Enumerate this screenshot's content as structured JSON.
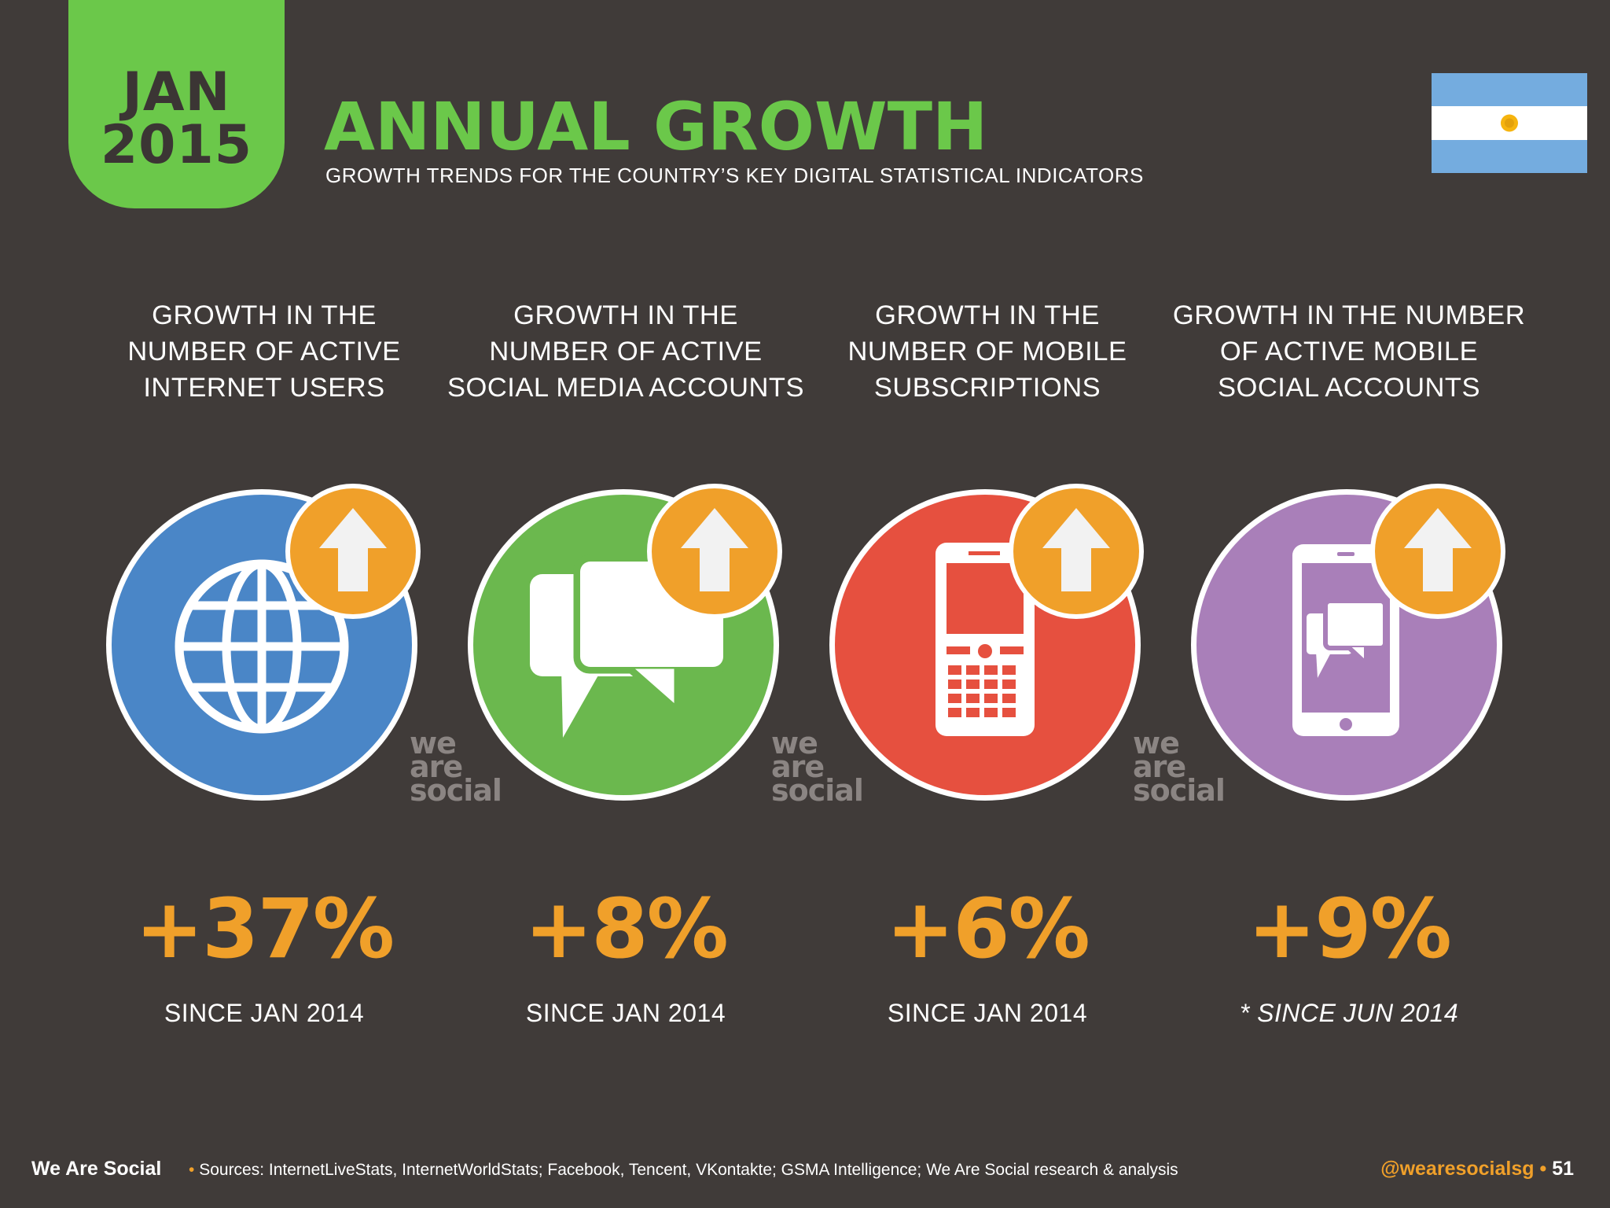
{
  "header": {
    "date_month": "JAN",
    "date_year": "2015",
    "title": "ANNUAL GROWTH",
    "subtitle": "GROWTH TRENDS FOR THE COUNTRY’S KEY DIGITAL STATISTICAL INDICATORS"
  },
  "colors": {
    "background": "#403b39",
    "accent_green": "#6bc84a",
    "accent_orange": "#f0a02a",
    "internet_blue": "#4a86c7",
    "social_green": "#6bb84e",
    "mobile_red": "#e6503f",
    "mobile_social_purple": "#a97fb9"
  },
  "indicators": [
    {
      "heading_lines": [
        "GROWTH IN THE",
        "NUMBER OF ACTIVE",
        "INTERNET USERS"
      ],
      "icon": "globe-icon",
      "value": "+37%",
      "since": "SINCE JAN 2014"
    },
    {
      "heading_lines": [
        "GROWTH IN THE",
        "NUMBER OF ACTIVE",
        "SOCIAL MEDIA ACCOUNTS"
      ],
      "icon": "chat-bubbles-icon",
      "value": "+8%",
      "since": "SINCE JAN 2014"
    },
    {
      "heading_lines": [
        "GROWTH IN THE",
        "NUMBER OF MOBILE",
        "SUBSCRIPTIONS"
      ],
      "icon": "mobile-phone-icon",
      "value": "+6%",
      "since": "SINCE JAN 2014"
    },
    {
      "heading_lines": [
        "GROWTH IN THE NUMBER",
        "OF ACTIVE MOBILE",
        "SOCIAL ACCOUNTS"
      ],
      "icon": "smartphone-chat-icon",
      "value": "+9%",
      "since": "* SINCE JUN 2014"
    }
  ],
  "watermark": {
    "line1": "we",
    "line2": "are",
    "line3": "social"
  },
  "footer": {
    "brand": "We Are Social",
    "separator": "•",
    "sources": "Sources: InternetLiveStats, InternetWorldStats; Facebook, Tencent, VKontakte; GSMA Intelligence; We Are Social research & analysis",
    "handle": "@wearesocialsg",
    "page_number": "51"
  }
}
